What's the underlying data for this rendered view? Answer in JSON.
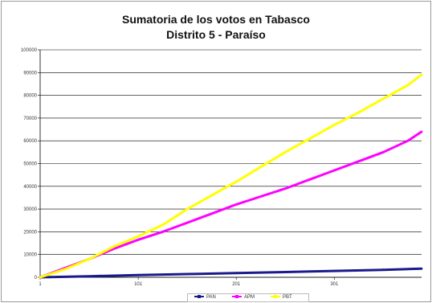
{
  "chart_data": {
    "type": "line",
    "title": "Sumatoria de los votos en Tabasco",
    "subtitle": "Distrito 5 - Paraíso",
    "xlabel": "",
    "ylabel": "",
    "xlim": [
      1,
      390
    ],
    "ylim": [
      0,
      100000
    ],
    "x_ticks": [
      "1",
      "101",
      "201",
      "301"
    ],
    "y_ticks": [
      "0",
      "10000",
      "20000",
      "30000",
      "40000",
      "50000",
      "60000",
      "70000",
      "80000",
      "90000",
      "100000"
    ],
    "grid": "horizontal",
    "legend_position": "bottom",
    "series": [
      {
        "name": "PAN",
        "color": "#1a1a8c",
        "x": [
          1,
          51,
          101,
          151,
          201,
          251,
          301,
          351,
          390
        ],
        "y": [
          0,
          450,
          950,
          1400,
          1850,
          2300,
          2800,
          3300,
          3800
        ]
      },
      {
        "name": "APM",
        "color": "#ff00ff",
        "x": [
          1,
          26,
          51,
          76,
          101,
          126,
          151,
          176,
          201,
          226,
          251,
          276,
          301,
          326,
          351,
          376,
          390
        ],
        "y": [
          0,
          4000,
          8000,
          12500,
          16500,
          20000,
          24000,
          28000,
          32000,
          35500,
          39000,
          43000,
          47000,
          51000,
          55000,
          60000,
          64000
        ]
      },
      {
        "name": "PBT",
        "color": "#ffff00",
        "x": [
          1,
          26,
          51,
          76,
          101,
          126,
          151,
          176,
          201,
          226,
          251,
          276,
          301,
          326,
          351,
          376,
          390
        ],
        "y": [
          0,
          3500,
          8000,
          13500,
          18000,
          23000,
          30000,
          36000,
          42000,
          48500,
          55000,
          61000,
          67000,
          72500,
          78500,
          84500,
          89000
        ]
      }
    ]
  }
}
